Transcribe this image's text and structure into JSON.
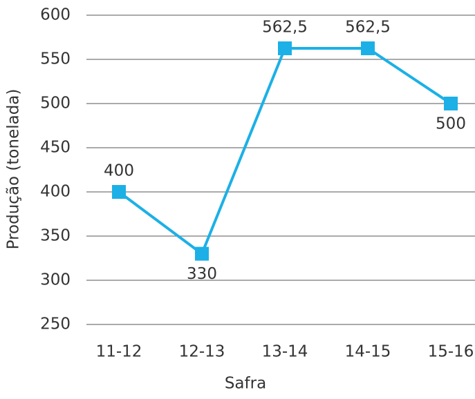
{
  "chart_data": {
    "type": "line",
    "x_label": "Safra",
    "y_label": "Produção (tonelada)",
    "categories": [
      "11-12",
      "12-13",
      "13-14",
      "14-15",
      "15-16"
    ],
    "values": [
      400,
      330,
      562.5,
      562.5,
      500
    ],
    "value_labels": [
      "400",
      "330",
      "562,5",
      "562,5",
      "500"
    ],
    "color": "#1cb0e6",
    "ylim": [
      250,
      600
    ],
    "yticks": [
      250,
      300,
      350,
      400,
      450,
      500,
      550,
      600
    ],
    "grid": true
  }
}
